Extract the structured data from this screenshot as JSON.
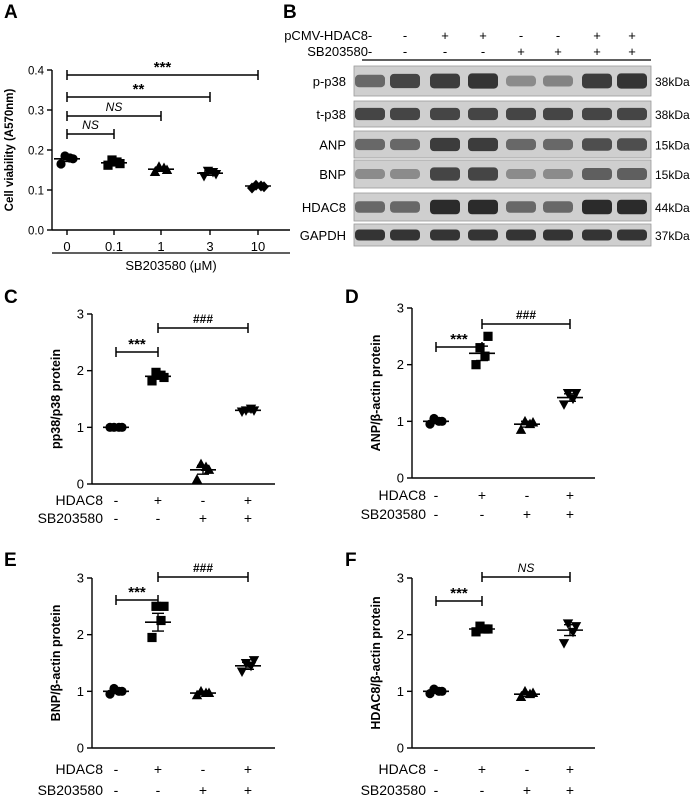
{
  "chart_data": [
    {
      "panel": "A",
      "type": "scatter",
      "ylabel": "Cell viability (A570nm)",
      "xlabel": "SB203580 (μM)",
      "categories": [
        "0",
        "0.1",
        "1",
        "3",
        "10"
      ],
      "yticks": [
        "0.0",
        "0.1",
        "0.2",
        "0.3",
        "0.4"
      ],
      "ylim": [
        0,
        0.4
      ],
      "groups": [
        {
          "label": "0",
          "marker": "circle",
          "mean": 0.178,
          "points": [
            0.165,
            0.18,
            0.185,
            0.178
          ]
        },
        {
          "label": "0.1",
          "marker": "square",
          "mean": 0.168,
          "points": [
            0.162,
            0.17,
            0.175,
            0.166
          ]
        },
        {
          "label": "1",
          "marker": "triangle",
          "mean": 0.152,
          "points": [
            0.145,
            0.155,
            0.158,
            0.15
          ]
        },
        {
          "label": "3",
          "marker": "tri-down",
          "mean": 0.142,
          "points": [
            0.135,
            0.145,
            0.148,
            0.14
          ]
        },
        {
          "label": "10",
          "marker": "diamond",
          "mean": 0.11,
          "points": [
            0.105,
            0.11,
            0.112,
            0.108
          ]
        }
      ],
      "brackets": [
        {
          "from": 0,
          "to": 1,
          "label": "NS",
          "italic": true
        },
        {
          "from": 0,
          "to": 2,
          "label": "NS",
          "italic": true
        },
        {
          "from": 0,
          "to": 3,
          "label": "**",
          "italic": false
        },
        {
          "from": 0,
          "to": 4,
          "label": "***",
          "italic": false
        }
      ]
    },
    {
      "panel": "C",
      "type": "scatter",
      "ylabel": "pp38/p38 protein",
      "yticks": [
        "0",
        "1",
        "2",
        "3"
      ],
      "ylim": [
        0,
        3
      ],
      "groups": [
        {
          "marker": "circle",
          "mean": 1.0,
          "points": [
            1.0,
            1.0,
            1.0,
            1.0
          ]
        },
        {
          "marker": "square",
          "mean": 1.9,
          "points": [
            1.82,
            1.92,
            1.97,
            1.88
          ]
        },
        {
          "marker": "triangle",
          "mean": 0.25,
          "points": [
            0.08,
            0.3,
            0.35,
            0.25
          ]
        },
        {
          "marker": "tri-down",
          "mean": 1.3,
          "points": [
            1.28,
            1.33,
            1.3,
            1.3
          ]
        }
      ],
      "brackets": [
        {
          "from": 0,
          "to": 1,
          "label": "***",
          "italic": false
        },
        {
          "from": 1,
          "to": 3,
          "label": "###",
          "italic": false
        }
      ]
    },
    {
      "panel": "D",
      "type": "scatter",
      "ylabel": "ANP/β-actin protein",
      "yticks": [
        "0",
        "1",
        "2",
        "3"
      ],
      "ylim": [
        0,
        3
      ],
      "groups": [
        {
          "marker": "circle",
          "mean": 1.0,
          "points": [
            0.95,
            1.0,
            1.05,
            1.0
          ]
        },
        {
          "marker": "square",
          "mean": 2.2,
          "points": [
            2.0,
            2.15,
            2.3,
            2.5
          ]
        },
        {
          "marker": "triangle",
          "mean": 0.95,
          "points": [
            0.85,
            0.95,
            1.0,
            0.98
          ]
        },
        {
          "marker": "tri-down",
          "mean": 1.42,
          "points": [
            1.3,
            1.4,
            1.5,
            1.5
          ]
        }
      ],
      "brackets": [
        {
          "from": 0,
          "to": 1,
          "label": "***",
          "italic": false
        },
        {
          "from": 1,
          "to": 3,
          "label": "###",
          "italic": false
        }
      ]
    },
    {
      "panel": "E",
      "type": "scatter",
      "ylabel": "BNP/β-actin protein",
      "yticks": [
        "0",
        "1",
        "2",
        "3"
      ],
      "ylim": [
        0,
        3
      ],
      "groups": [
        {
          "marker": "circle",
          "mean": 1.0,
          "points": [
            0.95,
            1.0,
            1.05,
            1.0
          ]
        },
        {
          "marker": "square",
          "mean": 2.22,
          "points": [
            1.95,
            2.25,
            2.5,
            2.5
          ]
        },
        {
          "marker": "triangle",
          "mean": 0.97,
          "points": [
            0.93,
            0.97,
            1.0,
            0.97
          ]
        },
        {
          "marker": "tri-down",
          "mean": 1.45,
          "points": [
            1.35,
            1.45,
            1.5,
            1.55
          ]
        }
      ],
      "brackets": [
        {
          "from": 0,
          "to": 1,
          "label": "***",
          "italic": false
        },
        {
          "from": 1,
          "to": 3,
          "label": "###",
          "italic": false
        }
      ]
    },
    {
      "panel": "F",
      "type": "scatter",
      "ylabel": "HDAC8/β-actin protein",
      "yticks": [
        "0",
        "1",
        "2",
        "3"
      ],
      "ylim": [
        0,
        3
      ],
      "groups": [
        {
          "marker": "circle",
          "mean": 1.0,
          "points": [
            0.96,
            1.0,
            1.04,
            1.0
          ]
        },
        {
          "marker": "square",
          "mean": 2.1,
          "points": [
            2.05,
            2.1,
            2.15,
            2.1
          ]
        },
        {
          "marker": "triangle",
          "mean": 0.95,
          "points": [
            0.9,
            0.95,
            1.0,
            0.97
          ]
        },
        {
          "marker": "tri-down",
          "mean": 2.08,
          "points": [
            1.85,
            2.05,
            2.2,
            2.15
          ]
        }
      ],
      "brackets": [
        {
          "from": 0,
          "to": 1,
          "label": "***",
          "italic": false
        },
        {
          "from": 1,
          "to": 3,
          "label": "NS",
          "italic": true
        }
      ]
    }
  ],
  "treatment_table": {
    "rows": [
      {
        "label": "HDAC8",
        "signs": [
          "-",
          "+",
          "-",
          "+"
        ]
      },
      {
        "label": "SB203580",
        "signs": [
          "-",
          "-",
          "+",
          "+"
        ]
      }
    ]
  },
  "western_blot": {
    "panel": "B",
    "header_rows": [
      {
        "label": "pCMV-HDAC8",
        "signs": [
          "-",
          "-",
          "+",
          "+",
          "-",
          "-",
          "+",
          "+"
        ]
      },
      {
        "label": "SB203580",
        "signs": [
          "-",
          "-",
          "-",
          "-",
          "+",
          "+",
          "+",
          "+"
        ]
      }
    ],
    "blots": [
      {
        "label": "p-p38",
        "kda": "38kDa",
        "intensity": [
          0.55,
          0.75,
          0.8,
          0.85,
          0.35,
          0.4,
          0.8,
          0.85
        ]
      },
      {
        "label": "t-p38",
        "kda": "38kDa",
        "intensity": [
          0.75,
          0.75,
          0.75,
          0.75,
          0.75,
          0.75,
          0.75,
          0.75
        ]
      },
      {
        "label": "ANP",
        "kda": "15kDa",
        "intensity": [
          0.55,
          0.55,
          0.8,
          0.8,
          0.55,
          0.55,
          0.7,
          0.7
        ]
      },
      {
        "label": "BNP",
        "kda": "15kDa",
        "intensity": [
          0.35,
          0.35,
          0.75,
          0.75,
          0.35,
          0.35,
          0.6,
          0.6
        ]
      },
      {
        "label": "HDAC8",
        "kda": "44kDa",
        "intensity": [
          0.55,
          0.55,
          0.9,
          0.9,
          0.55,
          0.55,
          0.9,
          0.9
        ]
      },
      {
        "label": "GAPDH",
        "kda": "37kDa",
        "intensity": [
          0.85,
          0.85,
          0.85,
          0.85,
          0.85,
          0.85,
          0.85,
          0.85
        ]
      }
    ]
  },
  "panel_letters": [
    "A",
    "B",
    "C",
    "D",
    "E",
    "F"
  ]
}
